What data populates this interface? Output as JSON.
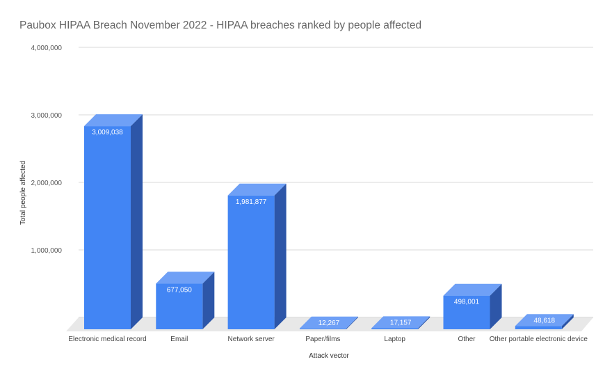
{
  "chart_data": {
    "type": "bar",
    "title": "Paubox HIPAA Breach November 2022 - HIPAA breaches ranked by people affected",
    "xlabel": "Attack vector",
    "ylabel": "Total people affected",
    "ylim": [
      0,
      4000000
    ],
    "yticks": [
      {
        "v": 1000000,
        "label": "1,000,000"
      },
      {
        "v": 2000000,
        "label": "2,000,000"
      },
      {
        "v": 3000000,
        "label": "3,000,000"
      },
      {
        "v": 4000000,
        "label": "4,000,000"
      }
    ],
    "categories": [
      "Electronic medical record",
      "Email",
      "Network server",
      "Paper/films",
      "Laptop",
      "Other",
      "Other portable electronic device"
    ],
    "values": [
      3009038,
      677050,
      1981877,
      12267,
      17157,
      498001,
      48618
    ],
    "data_labels": [
      "3,009,038",
      "677,050",
      "1,981,877",
      "12,267",
      "17,157",
      "498,001",
      "48,618"
    ],
    "colors": {
      "front": "#4285f4",
      "top": "#6fa0f6",
      "side": "#2d56a8",
      "floor": "#e8e8e8"
    }
  }
}
